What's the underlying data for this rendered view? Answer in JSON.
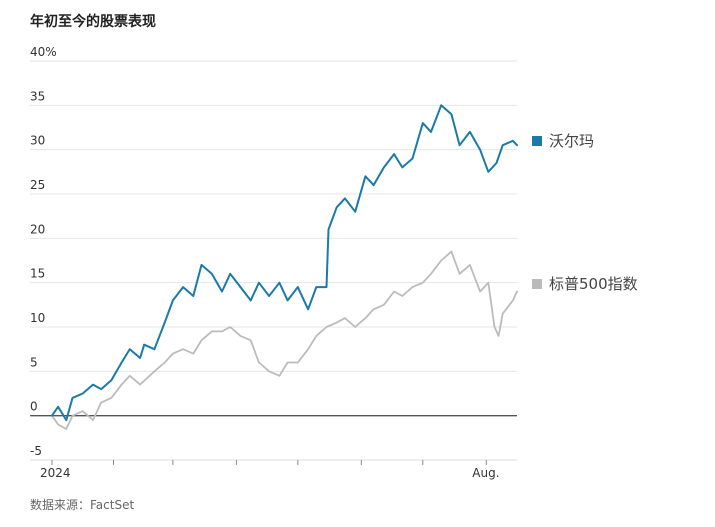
{
  "chart_data": {
    "type": "line",
    "title": "年初至今的股票表现",
    "source": "数据来源：FactSet",
    "y_ticks": [
      {
        "value": 40,
        "label": "40%"
      },
      {
        "value": 35,
        "label": "35"
      },
      {
        "value": 30,
        "label": "30"
      },
      {
        "value": 25,
        "label": "25"
      },
      {
        "value": 20,
        "label": "20"
      },
      {
        "value": 15,
        "label": "15"
      },
      {
        "value": 10,
        "label": "10"
      },
      {
        "value": 5,
        "label": "5"
      },
      {
        "value": 0,
        "label": "0"
      },
      {
        "value": -5,
        "label": "-5"
      }
    ],
    "ylim": [
      -5,
      40
    ],
    "x_labels": [
      {
        "date": "2024-01-02",
        "label": "2024"
      },
      {
        "date": "2024-08-01",
        "label": "Aug."
      }
    ],
    "x_range": [
      "2024-01-02",
      "2024-08-16"
    ],
    "month_ticks": [
      "2024-02-01",
      "2024-03-01",
      "2024-04-01",
      "2024-05-01",
      "2024-06-01",
      "2024-07-01",
      "2024-08-01"
    ],
    "grid": true,
    "legend_position": "right",
    "series": [
      {
        "name": "沃尔玛",
        "color": "#1a7aa8",
        "x": [
          "2024-01-02",
          "2024-01-05",
          "2024-01-09",
          "2024-01-12",
          "2024-01-17",
          "2024-01-22",
          "2024-01-26",
          "2024-01-31",
          "2024-02-05",
          "2024-02-09",
          "2024-02-14",
          "2024-02-16",
          "2024-02-21",
          "2024-02-26",
          "2024-03-01",
          "2024-03-06",
          "2024-03-11",
          "2024-03-15",
          "2024-03-20",
          "2024-03-25",
          "2024-03-29",
          "2024-04-03",
          "2024-04-08",
          "2024-04-12",
          "2024-04-17",
          "2024-04-22",
          "2024-04-26",
          "2024-05-01",
          "2024-05-06",
          "2024-05-10",
          "2024-05-15",
          "2024-05-16",
          "2024-05-20",
          "2024-05-24",
          "2024-05-29",
          "2024-06-03",
          "2024-06-07",
          "2024-06-12",
          "2024-06-17",
          "2024-06-21",
          "2024-06-26",
          "2024-07-01",
          "2024-07-05",
          "2024-07-10",
          "2024-07-15",
          "2024-07-19",
          "2024-07-24",
          "2024-07-29",
          "2024-08-02",
          "2024-08-06",
          "2024-08-09",
          "2024-08-14",
          "2024-08-16"
        ],
        "values": [
          0,
          1,
          -0.5,
          2,
          2.5,
          3.5,
          3,
          4,
          6,
          7.5,
          6.5,
          8,
          7.5,
          10.5,
          13,
          14.5,
          13.5,
          17,
          16,
          14,
          16,
          14.5,
          13,
          15,
          13.5,
          15,
          13,
          14.5,
          12,
          14.5,
          14.5,
          21,
          23.5,
          24.5,
          23,
          27,
          26,
          28,
          29.5,
          28,
          29,
          33,
          32,
          35,
          34,
          30.5,
          32,
          30,
          27.5,
          28.5,
          30.5,
          31,
          30.5
        ]
      },
      {
        "name": "标普500指数",
        "color": "#bbbbbb",
        "x": [
          "2024-01-02",
          "2024-01-05",
          "2024-01-09",
          "2024-01-12",
          "2024-01-17",
          "2024-01-22",
          "2024-01-26",
          "2024-01-31",
          "2024-02-05",
          "2024-02-09",
          "2024-02-14",
          "2024-02-21",
          "2024-02-26",
          "2024-03-01",
          "2024-03-06",
          "2024-03-11",
          "2024-03-15",
          "2024-03-20",
          "2024-03-25",
          "2024-03-29",
          "2024-04-03",
          "2024-04-08",
          "2024-04-12",
          "2024-04-17",
          "2024-04-22",
          "2024-04-26",
          "2024-05-01",
          "2024-05-06",
          "2024-05-10",
          "2024-05-15",
          "2024-05-20",
          "2024-05-24",
          "2024-05-29",
          "2024-06-03",
          "2024-06-07",
          "2024-06-12",
          "2024-06-17",
          "2024-06-21",
          "2024-06-26",
          "2024-07-01",
          "2024-07-05",
          "2024-07-10",
          "2024-07-15",
          "2024-07-19",
          "2024-07-24",
          "2024-07-29",
          "2024-08-02",
          "2024-08-05",
          "2024-08-07",
          "2024-08-09",
          "2024-08-14",
          "2024-08-16"
        ],
        "values": [
          0,
          -1,
          -1.5,
          0,
          0.5,
          -0.5,
          1.5,
          2,
          3.5,
          4.5,
          3.5,
          5,
          6,
          7,
          7.5,
          7,
          8.5,
          9.5,
          9.5,
          10,
          9,
          8.5,
          6,
          5,
          4.5,
          6,
          6,
          7.5,
          9,
          10,
          10.5,
          11,
          10,
          11,
          12,
          12.5,
          14,
          13.5,
          14.5,
          15,
          16,
          17.5,
          18.5,
          16,
          17,
          14,
          15,
          10,
          9,
          11.5,
          13,
          14
        ]
      }
    ]
  }
}
